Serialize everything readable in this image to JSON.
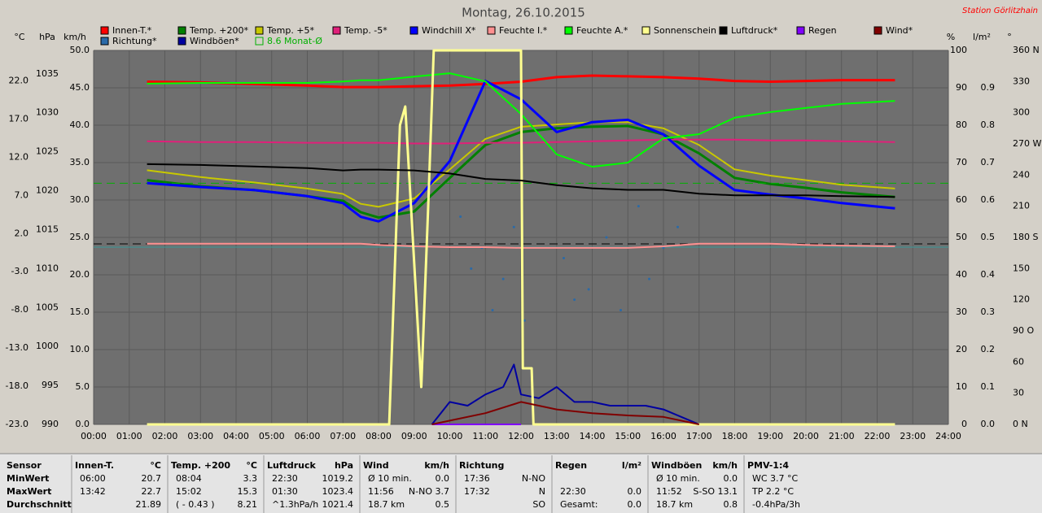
{
  "chart_data": {
    "type": "line",
    "title": "Montag, 26.10.2015",
    "station": "Station Görlitzhain",
    "axis_units": {
      "temp": "°C",
      "pressure": "hPa",
      "y": "km/h",
      "y2": "%",
      "rain": "l/m²",
      "direction": "°"
    },
    "xlim": [
      0,
      24
    ],
    "xticks": [
      {
        "value": 0,
        "label": "00:00"
      },
      {
        "value": 1,
        "label": "01:00"
      },
      {
        "value": 2,
        "label": "02:00"
      },
      {
        "value": 3,
        "label": "03:00"
      },
      {
        "value": 4,
        "label": "04:00"
      },
      {
        "value": 5,
        "label": "05:00"
      },
      {
        "value": 6,
        "label": "06:00"
      },
      {
        "value": 7,
        "label": "07:00"
      },
      {
        "value": 8,
        "label": "08:00"
      },
      {
        "value": 9,
        "label": "09:00"
      },
      {
        "value": 10,
        "label": "10:00"
      },
      {
        "value": 11,
        "label": "11:00"
      },
      {
        "value": 12,
        "label": "12:00"
      },
      {
        "value": 13,
        "label": "13:00"
      },
      {
        "value": 14,
        "label": "14:00"
      },
      {
        "value": 15,
        "label": "15:00"
      },
      {
        "value": 16,
        "label": "16:00"
      },
      {
        "value": 17,
        "label": "17:00"
      },
      {
        "value": 18,
        "label": "18:00"
      },
      {
        "value": 19,
        "label": "19:00"
      },
      {
        "value": 20,
        "label": "20:00"
      },
      {
        "value": 21,
        "label": "21:00"
      },
      {
        "value": 22,
        "label": "22:00"
      },
      {
        "value": 23,
        "label": "23:00"
      },
      {
        "value": 24,
        "label": "24:00"
      }
    ],
    "ylim": [
      0,
      50
    ],
    "yticks": [
      {
        "value": 0,
        "label": "0.0"
      },
      {
        "value": 5,
        "label": "5.0"
      },
      {
        "value": 10,
        "label": "10.0"
      },
      {
        "value": 15,
        "label": "15.0"
      },
      {
        "value": 20,
        "label": "20.0"
      },
      {
        "value": 25,
        "label": "25.0"
      },
      {
        "value": 30,
        "label": "30.0"
      },
      {
        "value": 35,
        "label": "35.0"
      },
      {
        "value": 40,
        "label": "40.0"
      },
      {
        "value": 45,
        "label": "45.0"
      },
      {
        "value": 50,
        "label": "50.0"
      }
    ],
    "temp_lim": [
      -23,
      26
    ],
    "temp_ticks": [
      {
        "value": -23,
        "label": "-23.0"
      },
      {
        "value": -18,
        "label": "-18.0"
      },
      {
        "value": -13,
        "label": "-13.0"
      },
      {
        "value": -8,
        "label": "-8.0"
      },
      {
        "value": -3,
        "label": "-3.0"
      },
      {
        "value": 2,
        "label": "2.0"
      },
      {
        "value": 7,
        "label": "7.0"
      },
      {
        "value": 12,
        "label": "12.0"
      },
      {
        "value": 17,
        "label": "17.0"
      },
      {
        "value": 22,
        "label": "22.0"
      }
    ],
    "pressure_lim": [
      990,
      1038
    ],
    "pressure_ticks": [
      990,
      995,
      1000,
      1005,
      1010,
      1015,
      1020,
      1025,
      1030,
      1035
    ],
    "y2lim": [
      0,
      100
    ],
    "y2ticks": [
      0,
      10,
      20,
      30,
      40,
      50,
      60,
      70,
      80,
      90,
      100
    ],
    "rain_lim": [
      0,
      1
    ],
    "rain_ticks": [
      {
        "value": 0,
        "label": "0.0"
      },
      {
        "value": 0.1,
        "label": "0.1"
      },
      {
        "value": 0.2,
        "label": "0.2"
      },
      {
        "value": 0.3,
        "label": "0.3"
      },
      {
        "value": 0.4,
        "label": "0.4"
      },
      {
        "value": 0.5,
        "label": "0.5"
      },
      {
        "value": 0.6,
        "label": "0.6"
      },
      {
        "value": 0.7,
        "label": "0.7"
      },
      {
        "value": 0.8,
        "label": "0.8"
      },
      {
        "value": 0.9,
        "label": "0.9"
      }
    ],
    "direction_lim": [
      0,
      360
    ],
    "direction_ticks": [
      {
        "value": 0,
        "label": "0 N"
      },
      30,
      60,
      {
        "value": 90,
        "label": "90 O"
      },
      120,
      150,
      {
        "value": 180,
        "label": "180 S"
      },
      210,
      240,
      {
        "value": 270,
        "label": "270 W"
      },
      300,
      330,
      {
        "value": 360,
        "label": "360 N"
      }
    ],
    "grid": true,
    "x": [
      1.5,
      3,
      4.5,
      6,
      7,
      7.5,
      8,
      9,
      10,
      11,
      12,
      13,
      14,
      15,
      16,
      17,
      18,
      19,
      20,
      21,
      22.5
    ],
    "series": [
      {
        "name": "Innen-T.*",
        "color": "#ff0000",
        "axis": "temp",
        "width": 3,
        "values": [
          21.9,
          21.8,
          21.6,
          21.4,
          21.2,
          21.2,
          21.2,
          21.3,
          21.4,
          21.6,
          21.9,
          22.5,
          22.7,
          22.6,
          22.5,
          22.3,
          22.0,
          21.9,
          22.0,
          22.1,
          22.1
        ]
      },
      {
        "name": "Richtung*",
        "color": "#2a6aa8",
        "axis": "direction",
        "kind": "dots",
        "x": [
          10.3,
          10.6,
          10.9,
          11.2,
          11.5,
          11.8,
          12.1,
          13.2,
          13.5,
          13.9,
          14.4,
          14.8,
          15.3,
          15.6,
          16,
          16.4
        ],
        "values": [
          200,
          150,
          170,
          110,
          140,
          190,
          100,
          160,
          120,
          130,
          180,
          110,
          210,
          140,
          170,
          190
        ]
      },
      {
        "name": "Temp. +200*",
        "color": "#008000",
        "axis": "temp",
        "width": 3,
        "values": [
          9.0,
          8.2,
          7.7,
          6.9,
          6.3,
          4.8,
          4.1,
          4.9,
          9.3,
          13.6,
          15.3,
          15.8,
          16.0,
          16.1,
          15.0,
          12.5,
          9.3,
          8.5,
          8.0,
          7.4,
          6.8
        ]
      },
      {
        "name": "Windböen*",
        "color": "#0000a0",
        "axis": "y",
        "width": 2,
        "x": [
          9.5,
          10,
          10.5,
          11,
          11.5,
          11.8,
          12,
          12.5,
          13,
          13.5,
          14,
          14.5,
          15,
          15.5,
          16,
          16.5,
          17
        ],
        "values": [
          0,
          3,
          2.5,
          4,
          5,
          8,
          4,
          3.5,
          5,
          3,
          3,
          2.5,
          2.5,
          2.5,
          2,
          1,
          0
        ]
      },
      {
        "name": "8.6 Monat-Ø",
        "color": "#00b000",
        "axis": "temp",
        "kind": "reference",
        "value": 8.6
      },
      {
        "name": "Temp. +5*",
        "color": "#c8c800",
        "axis": "temp",
        "width": 2,
        "values": [
          10.3,
          9.4,
          8.7,
          7.9,
          7.2,
          5.9,
          5.5,
          6.6,
          10.4,
          14.4,
          16.0,
          16.3,
          16.6,
          16.6,
          15.8,
          13.6,
          10.4,
          9.6,
          9.0,
          8.4,
          7.9
        ]
      },
      {
        "name": "Temp. -5*",
        "color": "#e0207a",
        "axis": "temp",
        "width": 2,
        "values": [
          14.1,
          14.0,
          14.0,
          13.9,
          13.9,
          13.9,
          13.9,
          13.8,
          13.8,
          13.9,
          13.9,
          14.0,
          14.1,
          14.2,
          14.3,
          14.3,
          14.3,
          14.2,
          14.2,
          14.1,
          14.0
        ]
      },
      {
        "name": "Windchill X*",
        "color": "#0000ff",
        "axis": "temp",
        "width": 3,
        "values": [
          8.6,
          8.1,
          7.7,
          6.9,
          6.0,
          4.2,
          3.6,
          6.0,
          11.5,
          22.0,
          19.6,
          15.3,
          16.6,
          16.9,
          15.0,
          10.9,
          7.7,
          7.1,
          6.6,
          6.0,
          5.3
        ]
      },
      {
        "name": "Feuchte I.*",
        "color": "#ff9090",
        "axis": "y2",
        "width": 2,
        "values": [
          48.3,
          48.3,
          48.3,
          48.3,
          48.3,
          48.3,
          48.0,
          47.6,
          47.4,
          47.4,
          47.2,
          47.2,
          47.2,
          47.2,
          47.6,
          48.3,
          48.3,
          48.3,
          48.0,
          47.8,
          47.6
        ]
      },
      {
        "name": "Feuchte A.*",
        "color": "#00ff00",
        "axis": "y2",
        "width": 2,
        "values": [
          91.1,
          91.3,
          91.3,
          91.3,
          91.7,
          92.0,
          92.0,
          93.0,
          93.9,
          91.7,
          83.0,
          72.2,
          68.9,
          70.0,
          76.5,
          77.6,
          82.0,
          83.5,
          84.6,
          85.7,
          86.5
        ]
      },
      {
        "name": "Sonnenschein",
        "color": "#ffff90",
        "axis": "y2",
        "width": 3,
        "x": [
          1.5,
          8.3,
          8.6,
          8.75,
          8.9,
          9.2,
          9.4,
          9.55,
          9.7,
          12.0,
          12.05,
          12.3,
          12.35,
          22.5
        ],
        "values": [
          0,
          0,
          80,
          85,
          60,
          10,
          60,
          100,
          100,
          100,
          15,
          15,
          0,
          0
        ]
      },
      {
        "name": "Luftdruck*",
        "color": "#000000",
        "axis": "pressure",
        "width": 2,
        "values": [
          1023.4,
          1023.3,
          1023.1,
          1022.9,
          1022.6,
          1022.7,
          1022.7,
          1022.6,
          1022.2,
          1021.5,
          1021.3,
          1020.7,
          1020.3,
          1020.1,
          1020.1,
          1019.6,
          1019.4,
          1019.4,
          1019.4,
          1019.3,
          1019.2
        ]
      },
      {
        "name": "Regen",
        "color": "#8000ff",
        "axis": "rain",
        "width": 2,
        "x": [
          9.5,
          12
        ],
        "values": [
          0,
          0
        ]
      },
      {
        "name": "Wind*",
        "color": "#800000",
        "axis": "y",
        "width": 2,
        "x": [
          9.5,
          10,
          11,
          12,
          13,
          14,
          15,
          16,
          17
        ],
        "values": [
          0,
          0.5,
          1.5,
          3,
          2,
          1.5,
          1.2,
          1,
          0
        ]
      }
    ]
  },
  "stats": {
    "row_labels": [
      "Sensor",
      "MinWert",
      "MaxWert",
      "Durchschnitt"
    ],
    "columns": [
      {
        "name": "Innen-T.",
        "unit": "°C",
        "min": [
          "06:00",
          "20.7"
        ],
        "max": [
          "13:42",
          "22.7"
        ],
        "avg": [
          null,
          "21.89"
        ]
      },
      {
        "name": "Temp. +200",
        "unit": "°C",
        "min": [
          "08:04",
          "3.3"
        ],
        "max": [
          "15:02",
          "15.3"
        ],
        "avg": [
          "( - 0.43 )",
          "8.21"
        ]
      },
      {
        "name": "Luftdruck",
        "unit": "hPa",
        "min": [
          "22:30",
          "1019.2"
        ],
        "max": [
          "01:30",
          "1023.4"
        ],
        "avg": [
          "^1.3hPa/h",
          "1021.4"
        ]
      },
      {
        "name": "Wind",
        "unit": "km/h",
        "min": [
          "Ø 10 min.",
          "0.0"
        ],
        "max": [
          "11:56",
          "N-NO 3.7"
        ],
        "avg": [
          "18.7 km",
          "0.5"
        ]
      },
      {
        "name": "Richtung",
        "unit": null,
        "min": [
          "17:36",
          "N-NO"
        ],
        "max": [
          "17:32",
          "N"
        ],
        "avg": [
          null,
          "SO"
        ]
      },
      {
        "name": "Regen",
        "unit": "l/m²",
        "min": [
          null,
          null
        ],
        "max": [
          "22:30",
          "0.0"
        ],
        "avg": [
          "Gesamt:",
          "0.0"
        ]
      },
      {
        "name": "Windböen",
        "unit": "km/h",
        "min": [
          "Ø 10 min.",
          "0.0"
        ],
        "max": [
          "11:52",
          "S-SO 13.1"
        ],
        "avg": [
          "18.7 km",
          "0.8"
        ]
      },
      {
        "name": "PMV-1:4",
        "unit": null,
        "min": [
          "WC 3.7 °C",
          null
        ],
        "max": [
          "TP 2.2 °C",
          null
        ],
        "avg": [
          "-0.4hPa/3h",
          null
        ]
      }
    ]
  }
}
